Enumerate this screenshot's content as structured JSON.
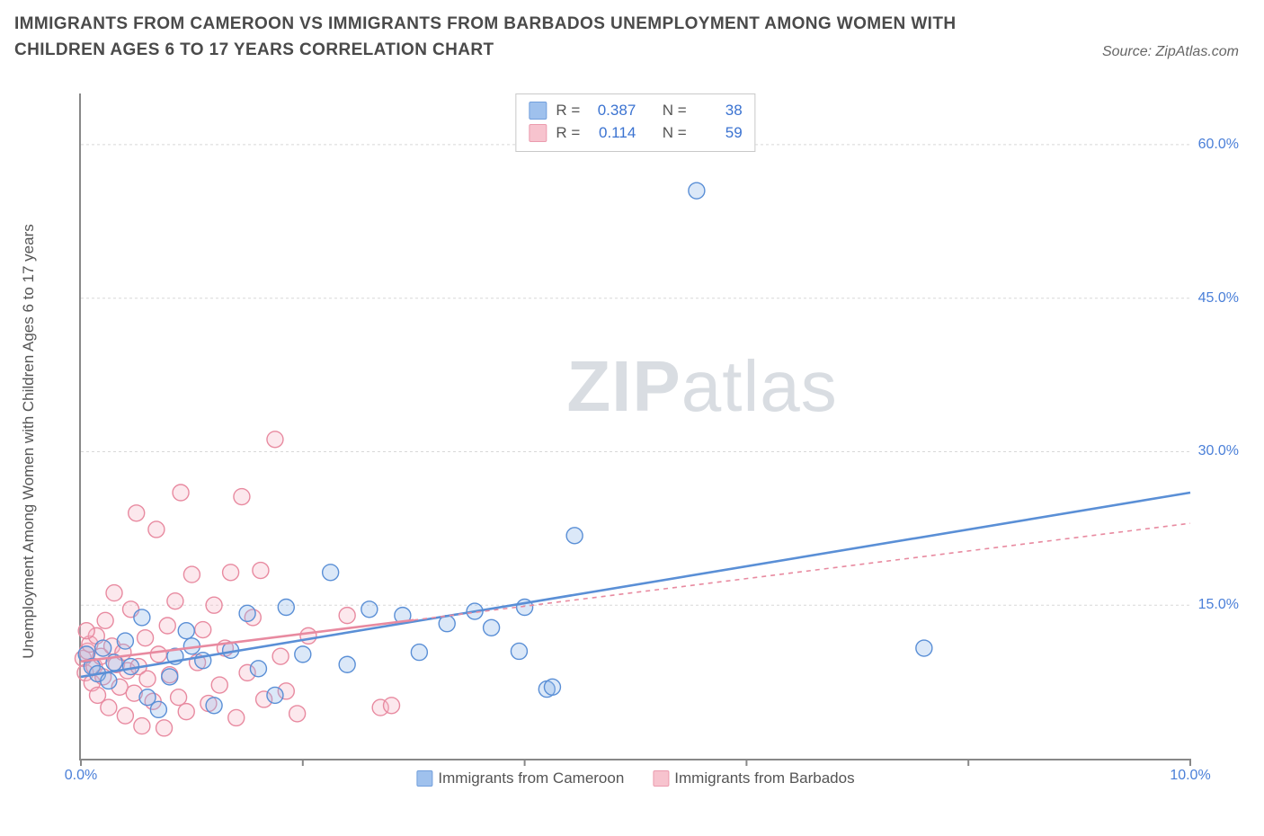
{
  "title": "IMMIGRANTS FROM CAMEROON VS IMMIGRANTS FROM BARBADOS UNEMPLOYMENT AMONG WOMEN WITH CHILDREN AGES 6 TO 17 YEARS CORRELATION CHART",
  "source_label": "Source: ZipAtlas.com",
  "ylabel": "Unemployment Among Women with Children Ages 6 to 17 years",
  "watermark_a": "ZIP",
  "watermark_b": "atlas",
  "chart": {
    "type": "scatter",
    "xlim": [
      0,
      10
    ],
    "ylim": [
      0,
      65
    ],
    "x_ticks": [
      0,
      2,
      4,
      6,
      8,
      10
    ],
    "x_tick_labels": {
      "0": "0.0%",
      "10": "10.0%"
    },
    "y_ticks": [
      15,
      30,
      45,
      60
    ],
    "y_tick_labels": {
      "15": "15.0%",
      "30": "30.0%",
      "45": "45.0%",
      "60": "60.0%"
    },
    "grid_color": "#d8d8d8",
    "axis_color": "#888888",
    "background_color": "#ffffff",
    "marker_radius": 9,
    "series": [
      {
        "name": "Immigrants from Cameroon",
        "fill": "#8fb7ea",
        "stroke": "#5a8fd6",
        "stat_R": "0.387",
        "stat_N": "38",
        "trend": {
          "x1": 0,
          "y1": 8.0,
          "x2": 10,
          "y2": 26.0,
          "solid": true,
          "solid_end_x": 10
        },
        "points": [
          [
            0.05,
            10.2
          ],
          [
            0.1,
            9.0
          ],
          [
            0.15,
            8.3
          ],
          [
            0.2,
            10.8
          ],
          [
            0.25,
            7.6
          ],
          [
            0.3,
            9.4
          ],
          [
            0.4,
            11.5
          ],
          [
            0.55,
            13.8
          ],
          [
            0.6,
            6.0
          ],
          [
            0.7,
            4.8
          ],
          [
            0.85,
            10.0
          ],
          [
            0.95,
            12.5
          ],
          [
            1.1,
            9.6
          ],
          [
            1.2,
            5.2
          ],
          [
            1.35,
            10.6
          ],
          [
            1.5,
            14.2
          ],
          [
            1.6,
            8.8
          ],
          [
            1.75,
            6.2
          ],
          [
            1.85,
            14.8
          ],
          [
            2.0,
            10.2
          ],
          [
            2.25,
            18.2
          ],
          [
            2.4,
            9.2
          ],
          [
            2.6,
            14.6
          ],
          [
            2.9,
            14.0
          ],
          [
            3.05,
            10.4
          ],
          [
            3.3,
            13.2
          ],
          [
            3.55,
            14.4
          ],
          [
            3.7,
            12.8
          ],
          [
            3.95,
            10.5
          ],
          [
            4.2,
            6.8
          ],
          [
            4.25,
            7.0
          ],
          [
            4.45,
            21.8
          ],
          [
            4.0,
            14.8
          ],
          [
            5.55,
            55.5
          ],
          [
            7.6,
            10.8
          ],
          [
            1.0,
            11.0
          ],
          [
            0.8,
            8.0
          ],
          [
            0.45,
            9.0
          ]
        ]
      },
      {
        "name": "Immigrants from Barbados",
        "fill": "#f6b9c6",
        "stroke": "#e88aa0",
        "stat_R": "0.114",
        "stat_N": "59",
        "trend": {
          "x1": 0,
          "y1": 9.5,
          "x2": 10,
          "y2": 23.0,
          "solid": true,
          "solid_end_x": 3.0
        },
        "points": [
          [
            0.02,
            9.8
          ],
          [
            0.04,
            8.4
          ],
          [
            0.06,
            10.5
          ],
          [
            0.08,
            11.2
          ],
          [
            0.1,
            7.4
          ],
          [
            0.12,
            9.0
          ],
          [
            0.14,
            12.0
          ],
          [
            0.15,
            6.2
          ],
          [
            0.18,
            10.0
          ],
          [
            0.2,
            8.0
          ],
          [
            0.22,
            13.5
          ],
          [
            0.25,
            5.0
          ],
          [
            0.28,
            11.0
          ],
          [
            0.3,
            16.2
          ],
          [
            0.32,
            9.2
          ],
          [
            0.35,
            7.0
          ],
          [
            0.38,
            10.4
          ],
          [
            0.4,
            4.2
          ],
          [
            0.42,
            8.6
          ],
          [
            0.45,
            14.6
          ],
          [
            0.48,
            6.4
          ],
          [
            0.5,
            24.0
          ],
          [
            0.52,
            9.0
          ],
          [
            0.55,
            3.2
          ],
          [
            0.58,
            11.8
          ],
          [
            0.6,
            7.8
          ],
          [
            0.65,
            5.6
          ],
          [
            0.68,
            22.4
          ],
          [
            0.7,
            10.2
          ],
          [
            0.75,
            3.0
          ],
          [
            0.78,
            13.0
          ],
          [
            0.8,
            8.2
          ],
          [
            0.85,
            15.4
          ],
          [
            0.88,
            6.0
          ],
          [
            0.9,
            26.0
          ],
          [
            0.95,
            4.6
          ],
          [
            1.0,
            18.0
          ],
          [
            1.05,
            9.4
          ],
          [
            1.1,
            12.6
          ],
          [
            1.15,
            5.4
          ],
          [
            1.2,
            15.0
          ],
          [
            1.25,
            7.2
          ],
          [
            1.3,
            10.8
          ],
          [
            1.35,
            18.2
          ],
          [
            1.4,
            4.0
          ],
          [
            1.45,
            25.6
          ],
          [
            1.5,
            8.4
          ],
          [
            1.55,
            13.8
          ],
          [
            1.62,
            18.4
          ],
          [
            1.65,
            5.8
          ],
          [
            1.75,
            31.2
          ],
          [
            1.8,
            10.0
          ],
          [
            1.85,
            6.6
          ],
          [
            1.95,
            4.4
          ],
          [
            2.05,
            12.0
          ],
          [
            2.4,
            14.0
          ],
          [
            2.7,
            5.0
          ],
          [
            2.8,
            5.2
          ],
          [
            0.05,
            12.5
          ]
        ]
      }
    ],
    "stats_box_labels": {
      "R": "R =",
      "N": "N ="
    },
    "bottom_legend_labels": [
      "Immigrants from Cameroon",
      "Immigrants from Barbados"
    ]
  }
}
